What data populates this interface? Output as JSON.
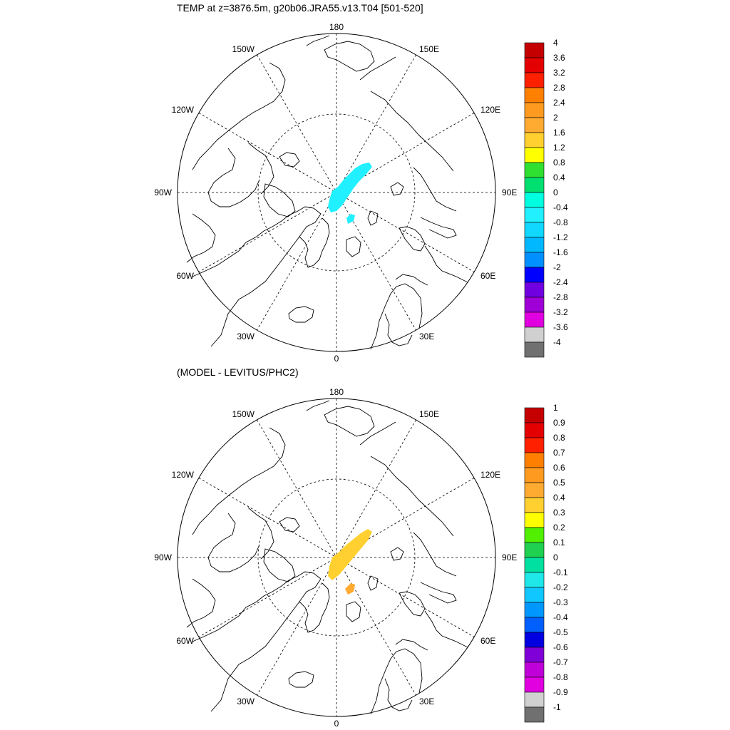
{
  "panels": [
    {
      "id": "top",
      "title": "TEMP at z=3876.5m, g20b06.JRA55.v13.T04 [501-520]",
      "colorbar": {
        "labels": [
          "4",
          "3.6",
          "3.2",
          "2.8",
          "2.4",
          "2",
          "1.6",
          "1.2",
          "0.8",
          "0.4",
          "0",
          "-0.4",
          "-0.8",
          "-1.2",
          "-1.6",
          "-2",
          "-2.4",
          "-2.8",
          "-3.2",
          "-3.6",
          "-4"
        ],
        "colors": [
          "#c40000",
          "#e40000",
          "#ff2000",
          "#ff8000",
          "#ff9a20",
          "#ffaa30",
          "#ffd030",
          "#ffff00",
          "#30e030",
          "#00e070",
          "#00ffe0",
          "#20f0ff",
          "#10d8ff",
          "#00b8ff",
          "#0090ff",
          "#0000ff",
          "#7000e0",
          "#a000d8",
          "#e000e0",
          "#d0d0d0",
          "#707070"
        ]
      },
      "anomaly_fill_main": "#20f0ff",
      "anomaly_fill_secondary": "#20f0ff"
    },
    {
      "id": "bottom",
      "title": "(MODEL - LEVITUS/PHC2)",
      "colorbar": {
        "labels": [
          "1",
          "0.9",
          "0.8",
          "0.7",
          "0.6",
          "0.5",
          "0.4",
          "0.3",
          "0.2",
          "0.1",
          "0",
          "-0.1",
          "-0.2",
          "-0.3",
          "-0.4",
          "-0.5",
          "-0.6",
          "-0.7",
          "-0.8",
          "-0.9",
          "-1"
        ],
        "colors": [
          "#c40000",
          "#e40000",
          "#ff2000",
          "#ff8000",
          "#ff9a20",
          "#ffaa30",
          "#ffd030",
          "#ffff00",
          "#50f000",
          "#20d050",
          "#00e0a0",
          "#20e8e8",
          "#10c8ff",
          "#0098ff",
          "#0060ff",
          "#0000e0",
          "#8000d8",
          "#c000d8",
          "#e000e0",
          "#d0d0d0",
          "#707070"
        ]
      },
      "anomaly_fill_main": "#ffd030",
      "anomaly_fill_secondary": "#ffaa30"
    }
  ],
  "map_labels": {
    "lon_180": "180",
    "lon_0": "0",
    "lon_150w": "150W",
    "lon_150e": "150E",
    "lon_120w": "120W",
    "lon_120e": "120E",
    "lon_90w": "90W",
    "lon_90e": "90E",
    "lon_60w": "60W",
    "lon_60e": "60E",
    "lon_30w": "30W",
    "lon_30e": "30E"
  }
}
